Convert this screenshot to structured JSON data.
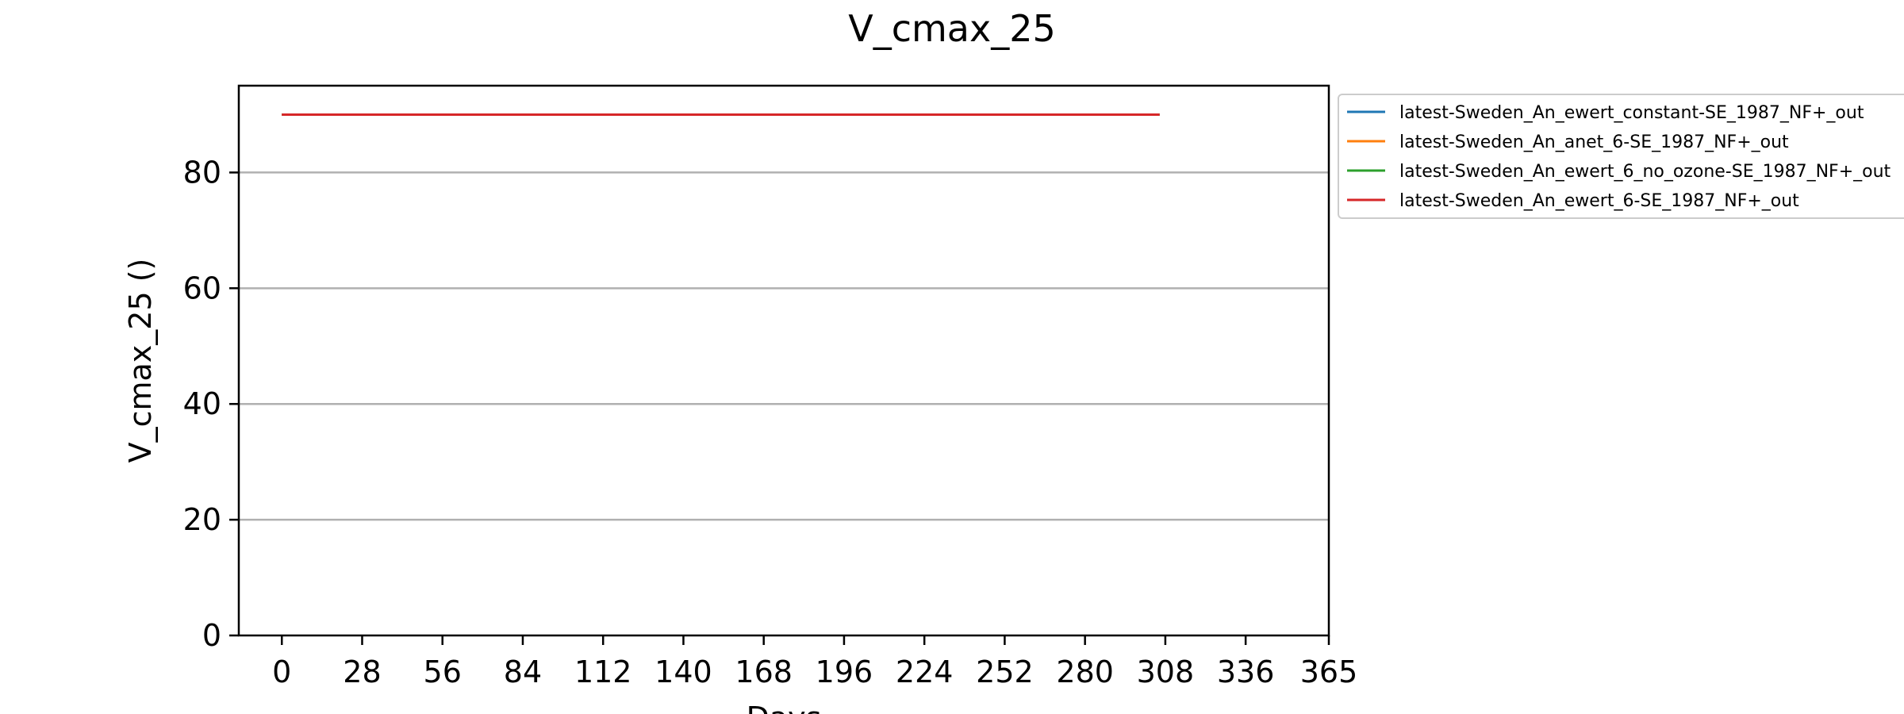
{
  "chart_data": {
    "type": "line",
    "title": "V_cmax_25",
    "xlabel": "Days",
    "ylabel": "V_cmax_25 ()",
    "xlim": [
      -15,
      365
    ],
    "ylim": [
      0,
      95
    ],
    "x_ticks": [
      "0",
      "28",
      "56",
      "84",
      "112",
      "140",
      "168",
      "196",
      "224",
      "252",
      "280",
      "308",
      "336",
      "365"
    ],
    "x_tick_values": [
      0,
      28,
      56,
      84,
      112,
      140,
      168,
      196,
      224,
      252,
      280,
      308,
      336,
      365
    ],
    "y_ticks": [
      "0",
      "20",
      "40",
      "60",
      "80"
    ],
    "y_tick_values": [
      0,
      20,
      40,
      60,
      80
    ],
    "grid": "horizontal",
    "legend_position": "outside-top-right",
    "series": [
      {
        "name": "latest-Sweden_An_ewert_constant-SE_1987_NF+_out",
        "color": "#1f77b4",
        "x": [
          0,
          306
        ],
        "y": [
          90,
          90
        ]
      },
      {
        "name": "latest-Sweden_An_anet_6-SE_1987_NF+_out",
        "color": "#ff7f0e",
        "x": [
          0,
          306
        ],
        "y": [
          90,
          90
        ]
      },
      {
        "name": "latest-Sweden_An_ewert_6_no_ozone-SE_1987_NF+_out",
        "color": "#2ca02c",
        "x": [
          0,
          306
        ],
        "y": [
          90,
          90
        ]
      },
      {
        "name": "latest-Sweden_An_ewert_6-SE_1987_NF+_out",
        "color": "#d62728",
        "x": [
          0,
          306
        ],
        "y": [
          90,
          90
        ]
      }
    ]
  }
}
